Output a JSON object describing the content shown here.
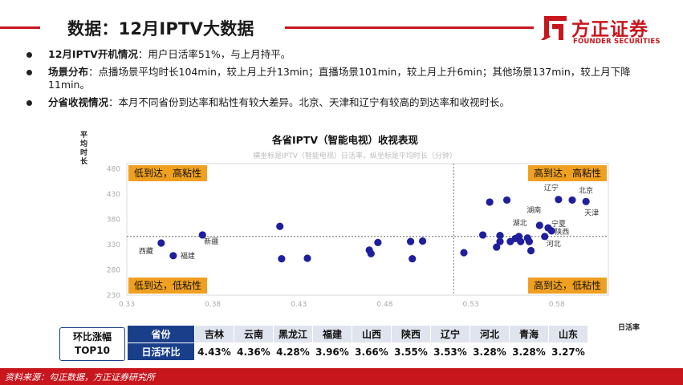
{
  "header": {
    "title": "数据：12月IPTV大数据",
    "logo_cn": "方正证券",
    "logo_en": "FOUNDER SECURITIES",
    "brand_color": "#c8161d"
  },
  "bullets": [
    {
      "head": "12月IPTV开机情况",
      "text": "：用户日活率51%，与上月持平。"
    },
    {
      "head": "场景分布",
      "text": "：点播场景平均时长104min，较上月上升13min；直播场景101min，较上月上升6min；其他场景137min，较上月下降11min。"
    },
    {
      "head": "分省收视情况",
      "text": "：本月不同省份到达率和粘性有较大差异。北京、天津和辽宁有较高的到达率和收视时长。"
    }
  ],
  "chart_data": {
    "type": "scatter",
    "title": "各省IPTV（智能电视）收视表现",
    "subtitle": "横坐标是IPTV（智能电视）日活率，纵坐标是平均时长（分钟）",
    "xlabel": "日活率",
    "ylabel": "平均时长",
    "xlim": [
      0.33,
      0.61
    ],
    "ylim": [
      230,
      490
    ],
    "x_ticks": [
      "0.33",
      "0.38",
      "0.43",
      "0.48",
      "0.53",
      "0.58"
    ],
    "y_ticks": [
      "230",
      "280",
      "330",
      "380",
      "430",
      "480"
    ],
    "x_divider": 0.52,
    "y_divider": 346,
    "point_color": "#1f1f9e",
    "quadrant_color": "#f0a020",
    "quadrants": {
      "top_left": "低到达，高粘性",
      "top_right": "高到达，高粘性",
      "bottom_left": "低到达，低粘性",
      "bottom_right": "高到达，低粘性"
    },
    "points": [
      {
        "label": "西藏",
        "x": 0.35,
        "y": 333
      },
      {
        "label": "福建",
        "x": 0.357,
        "y": 308
      },
      {
        "label": "新疆",
        "x": 0.374,
        "y": 349
      },
      {
        "label": "",
        "x": 0.419,
        "y": 366
      },
      {
        "label": "",
        "x": 0.42,
        "y": 302
      },
      {
        "label": "",
        "x": 0.435,
        "y": 303
      },
      {
        "label": "",
        "x": 0.471,
        "y": 319
      },
      {
        "label": "",
        "x": 0.472,
        "y": 312
      },
      {
        "label": "",
        "x": 0.476,
        "y": 334
      },
      {
        "label": "",
        "x": 0.495,
        "y": 336
      },
      {
        "label": "",
        "x": 0.496,
        "y": 302
      },
      {
        "label": "",
        "x": 0.502,
        "y": 337
      },
      {
        "label": "",
        "x": 0.526,
        "y": 314
      },
      {
        "label": "",
        "x": 0.537,
        "y": 349
      },
      {
        "label": "",
        "x": 0.541,
        "y": 414
      },
      {
        "label": "",
        "x": 0.551,
        "y": 418
      },
      {
        "label": "",
        "x": 0.545,
        "y": 325
      },
      {
        "label": "",
        "x": 0.547,
        "y": 348
      },
      {
        "label": "",
        "x": 0.547,
        "y": 336
      },
      {
        "label": "",
        "x": 0.553,
        "y": 336
      },
      {
        "label": "",
        "x": 0.556,
        "y": 342
      },
      {
        "label": "",
        "x": 0.559,
        "y": 336
      },
      {
        "label": "湖北",
        "x": 0.558,
        "y": 346
      },
      {
        "label": "",
        "x": 0.563,
        "y": 343
      },
      {
        "label": "",
        "x": 0.564,
        "y": 336
      },
      {
        "label": "",
        "x": 0.565,
        "y": 318
      },
      {
        "label": "湖南",
        "x": 0.57,
        "y": 368
      },
      {
        "label": "宁夏",
        "x": 0.575,
        "y": 363
      },
      {
        "label": "陕西",
        "x": 0.577,
        "y": 357
      },
      {
        "label": "河北",
        "x": 0.573,
        "y": 346
      },
      {
        "label": "辽宁",
        "x": 0.581,
        "y": 419
      },
      {
        "label": "北京",
        "x": 0.589,
        "y": 418
      },
      {
        "label": "天津",
        "x": 0.597,
        "y": 415
      }
    ],
    "point_labels": [
      "西藏",
      "福建",
      "新疆",
      "湖北",
      "湖南",
      "宁夏",
      "陕西",
      "河北",
      "辽宁",
      "北京",
      "天津"
    ]
  },
  "ranking": {
    "tag_line1": "环比涨幅",
    "tag_line2": "TOP10",
    "row1_head": "省份",
    "row2_head": "日活环比",
    "provinces": [
      "吉林",
      "云南",
      "黑龙江",
      "福建",
      "山西",
      "陕西",
      "辽宁",
      "河北",
      "青海",
      "山东"
    ],
    "values": [
      "4.43%",
      "4.36%",
      "4.28%",
      "3.96%",
      "3.66%",
      "3.55%",
      "3.53%",
      "3.28%",
      "3.28%",
      "3.27%"
    ]
  },
  "footer": {
    "source": "资料来源：勾正数据，方正证券研究所"
  }
}
